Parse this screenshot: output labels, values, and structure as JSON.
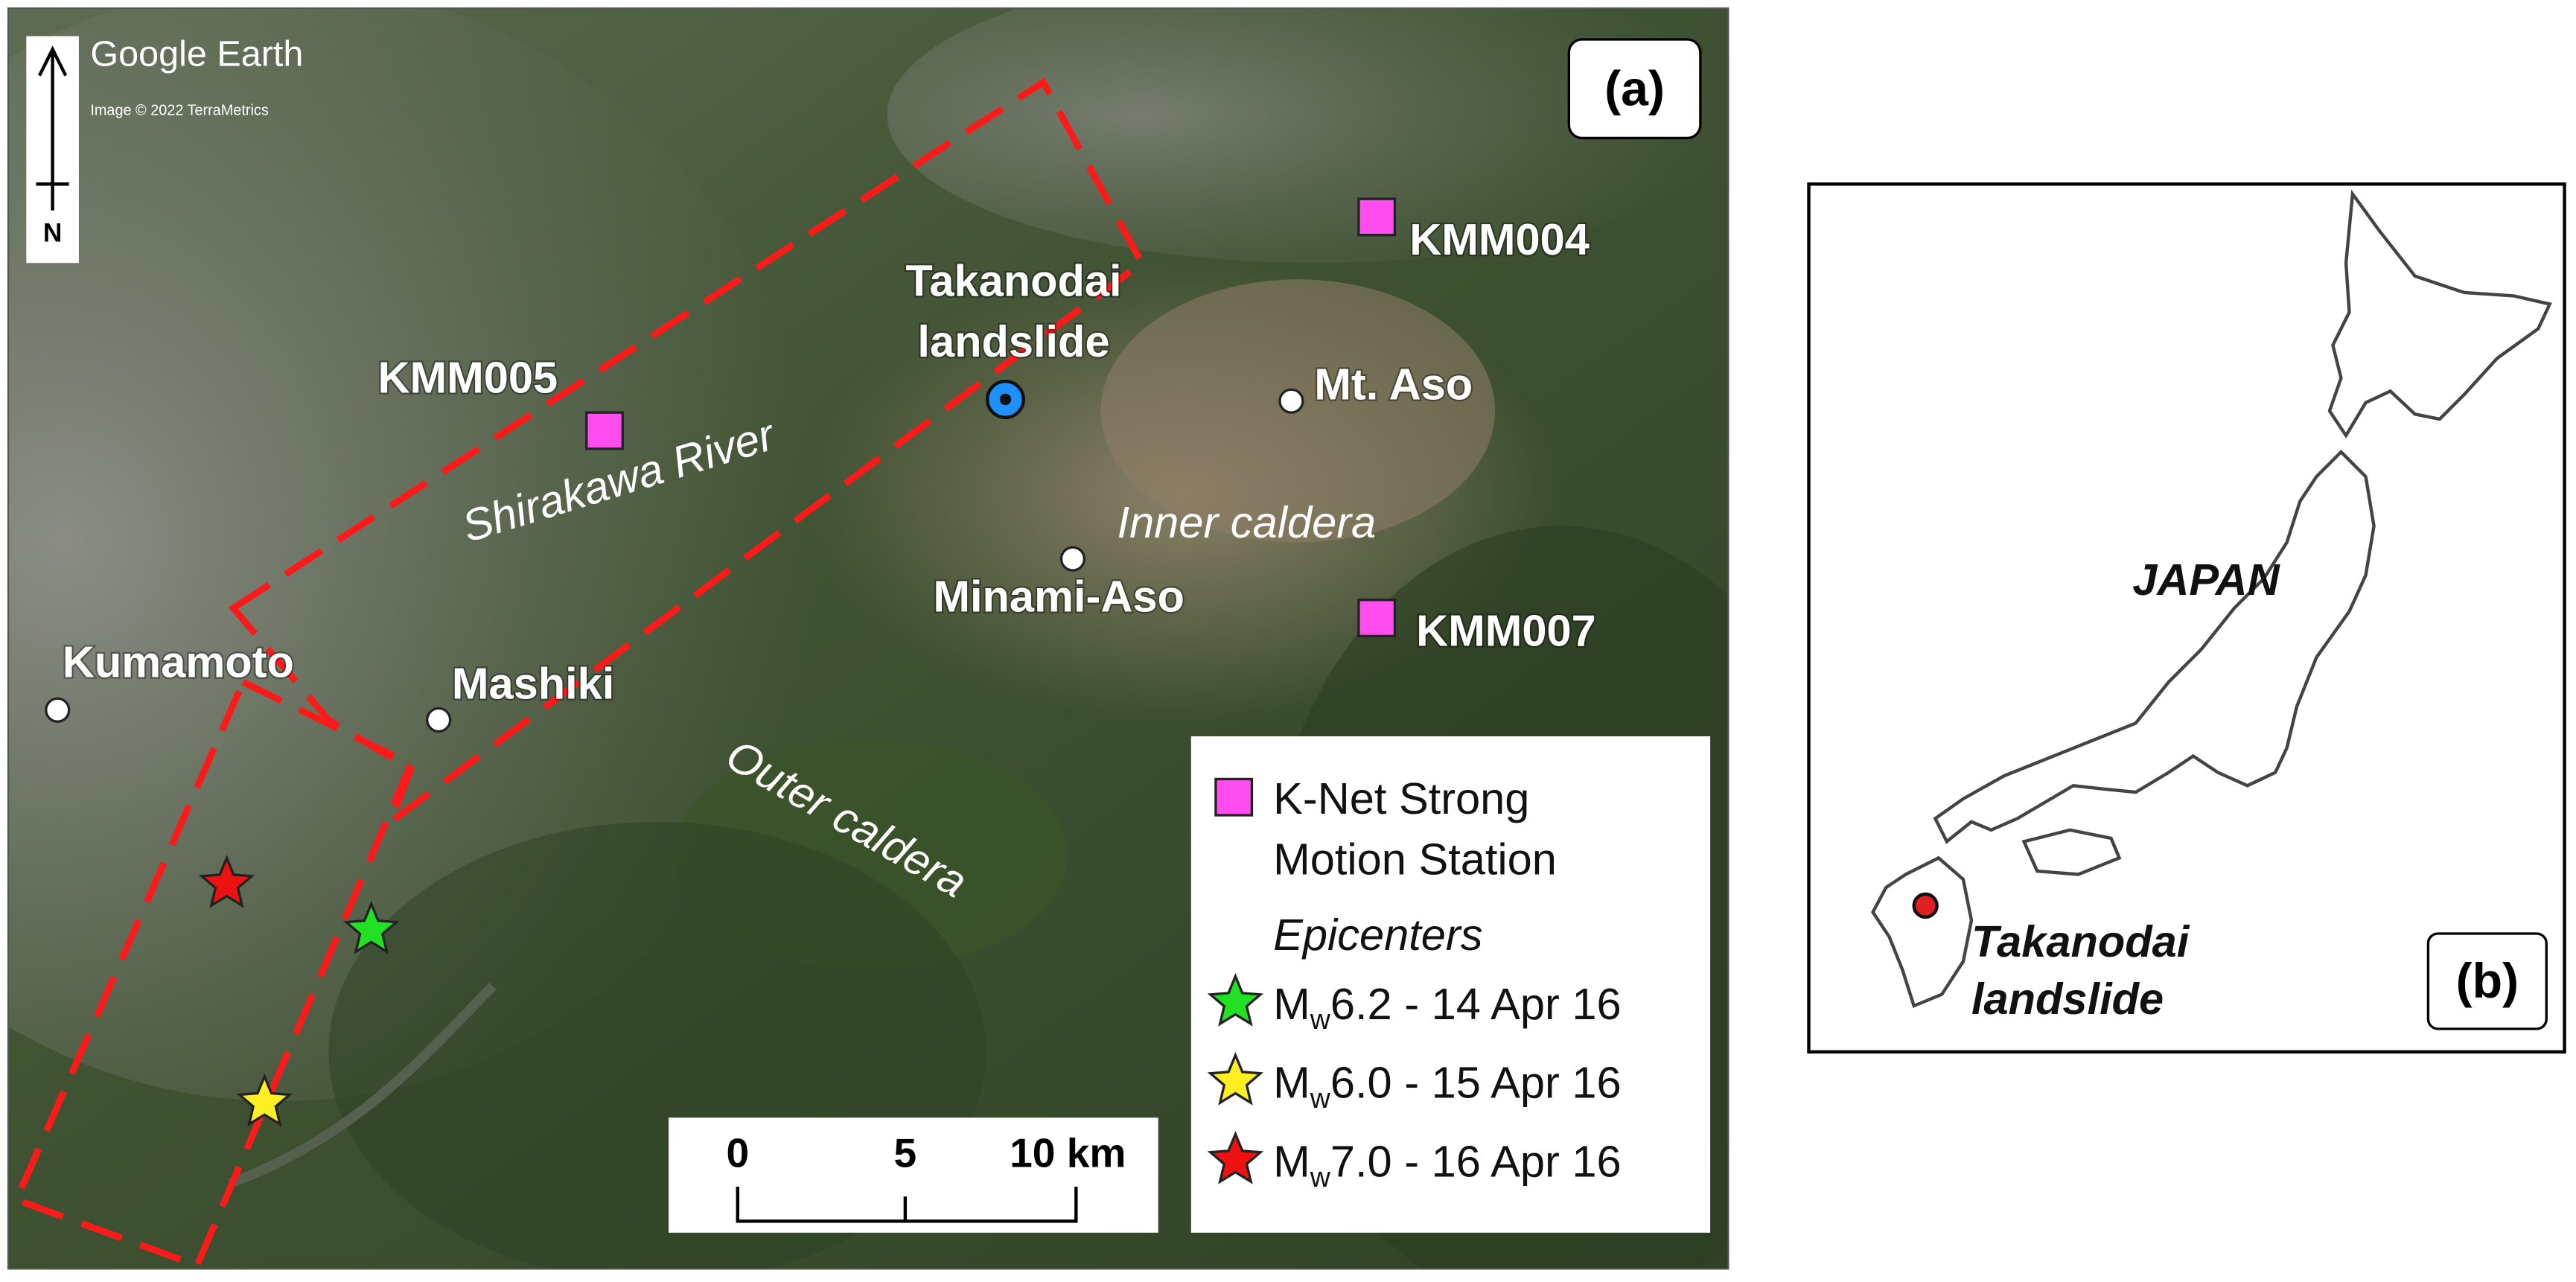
{
  "panel_a": {
    "label": "(a)",
    "watermark": "Google Earth",
    "credit": "Image © 2022 TerraMetrics",
    "north": "N",
    "stations": [
      "KMM004",
      "KMM005",
      "KMM007"
    ],
    "places": [
      "Mt. Aso",
      "Minami-Aso",
      "Kumamoto",
      "Mashiki"
    ],
    "landslide": [
      "Takanodai",
      "landslide"
    ],
    "features": [
      "Shirakawa River",
      "Inner caldera",
      "Outer caldera"
    ],
    "scale_bar": [
      "0",
      "5",
      "10 km"
    ],
    "legend": {
      "station": [
        "K-Net Strong",
        "Motion Station"
      ],
      "heading": "Epicenters",
      "epicenters": [
        {
          "symbol": "M",
          "subscript": "w",
          "text": "6.2 - 14 Apr 16",
          "color": "#22e022"
        },
        {
          "symbol": "M",
          "subscript": "w",
          "text": "6.0 - 15 Apr 16",
          "color": "#ffee22"
        },
        {
          "symbol": "M",
          "subscript": "w",
          "text": "7.0 - 16 Apr 16",
          "color": "#ee1111"
        }
      ]
    }
  },
  "panel_b": {
    "label": "(b)",
    "country": "JAPAN",
    "landslide": [
      "Takanodai",
      "landslide"
    ]
  }
}
